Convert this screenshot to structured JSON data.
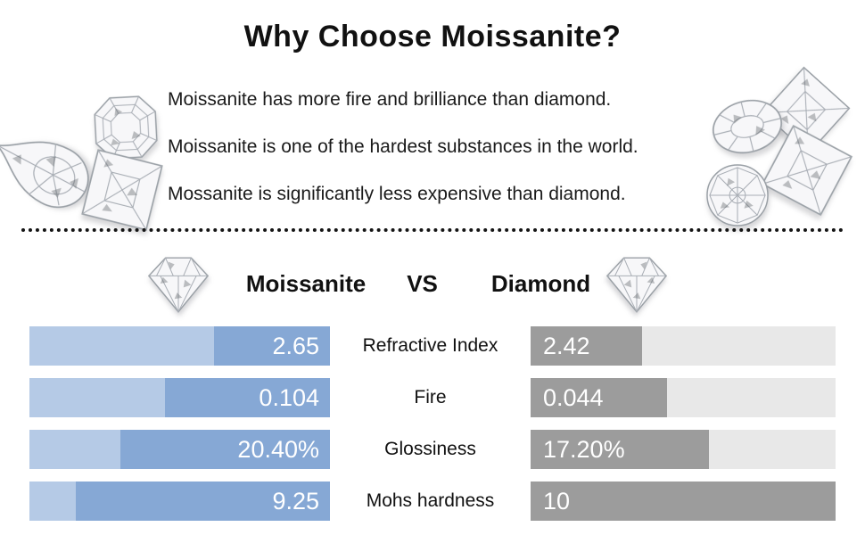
{
  "page": {
    "title": "Why Choose Moissanite?",
    "benefits": [
      "Moissanite has more fire and brilliance than diamond.",
      "Moissanite is one of the hardest substances in the world.",
      "Mossanite is significantly less expensive than diamond."
    ]
  },
  "vs_header": {
    "left_name": "Moissanite",
    "vs_label": "VS",
    "right_name": "Diamond"
  },
  "comparison": {
    "rows": [
      {
        "label": "Refractive Index",
        "moissanite_value": "2.65",
        "diamond_value": "2.42",
        "moissanite_fill_pct": 38.6,
        "diamond_fill_pct": 36.5
      },
      {
        "label": "Fire",
        "moissanite_value": "0.104",
        "diamond_value": "0.044",
        "moissanite_fill_pct": 55.0,
        "diamond_fill_pct": 44.7
      },
      {
        "label": "Glossiness",
        "moissanite_value": "20.40%",
        "diamond_value": "17.20%",
        "moissanite_fill_pct": 69.7,
        "diamond_fill_pct": 58.5
      },
      {
        "label": "Mohs hardness",
        "moissanite_value": "9.25",
        "diamond_value": "10",
        "moissanite_fill_pct": 84.6,
        "diamond_fill_pct": 100
      }
    ]
  },
  "colors": {
    "moissanite_bar_track": "#b5cae6",
    "moissanite_bar_fill": "#86a8d5",
    "diamond_bar_track": "#e8e8e8",
    "diamond_bar_fill": "#9c9c9c",
    "bar_value_text": "#ffffff",
    "text": "#111111"
  },
  "chart_data": {
    "type": "bar",
    "layout": "mirrored horizontal comparison bars, metric labels centered between the two series",
    "categories": [
      "Refractive Index",
      "Fire",
      "Glossiness",
      "Mohs hardness"
    ],
    "series": [
      {
        "name": "Moissanite",
        "values": [
          2.65,
          0.104,
          20.4,
          9.25
        ],
        "display": [
          "2.65",
          "0.104",
          "20.40%",
          "9.25"
        ],
        "color": "#86a8d5"
      },
      {
        "name": "Diamond",
        "values": [
          2.42,
          0.044,
          17.2,
          10
        ],
        "display": [
          "2.42",
          "0.044",
          "17.20%",
          "10"
        ],
        "color": "#9c9c9c"
      }
    ],
    "title": "Moissanite VS Diamond",
    "grid": false,
    "legend_position": "header row with gem icons"
  }
}
